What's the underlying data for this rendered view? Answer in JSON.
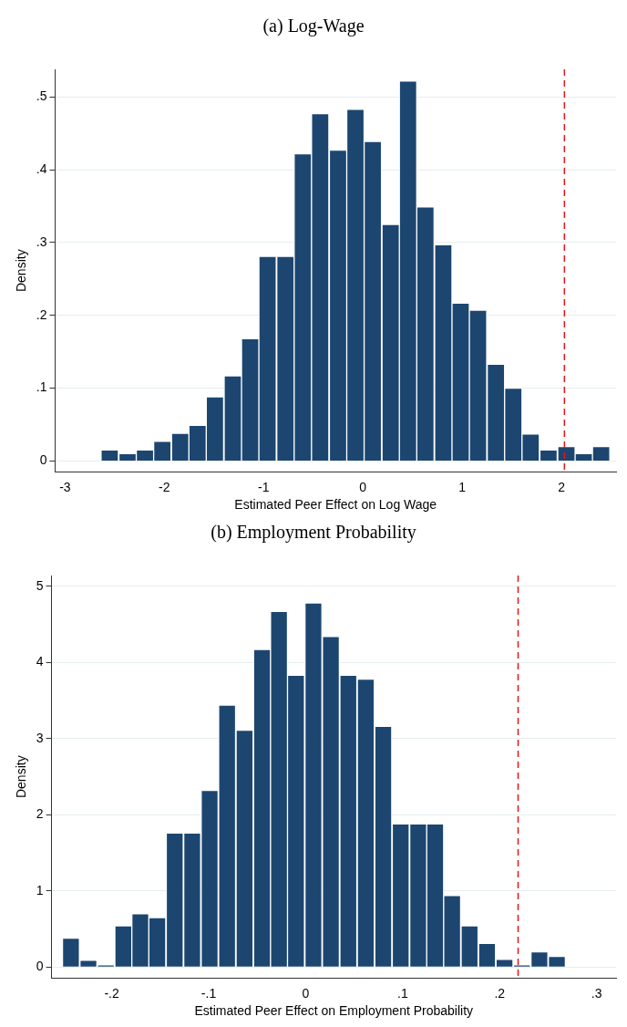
{
  "chart_data": [
    {
      "type": "histogram",
      "title": "(a) Log-Wage",
      "xlabel": "Estimated Peer Effect on Log Wage",
      "ylabel": "Density",
      "bins": [
        -2.64,
        -2.46,
        -2.28,
        -2.11,
        -1.93,
        -1.75,
        -1.58,
        -1.4,
        -1.22,
        -1.05,
        -0.87,
        -0.69,
        -0.52,
        -0.34,
        -0.16,
        0.01,
        0.19,
        0.37,
        0.54,
        0.72,
        0.9,
        1.07,
        1.25,
        1.43,
        1.6,
        1.78,
        1.96,
        2.14,
        2.31,
        2.49
      ],
      "values": [
        0.015,
        0.01,
        0.015,
        0.027,
        0.038,
        0.049,
        0.088,
        0.117,
        0.168,
        0.281,
        0.281,
        0.422,
        0.477,
        0.427,
        0.483,
        0.439,
        0.325,
        0.522,
        0.349,
        0.297,
        0.217,
        0.207,
        0.133,
        0.1,
        0.037,
        0.015,
        0.02,
        0.01,
        0.02
      ],
      "color": "#1c4670",
      "xlim": [
        -3.1,
        2.55
      ],
      "xticks": [
        -3,
        -2,
        -1,
        0,
        1,
        2
      ],
      "ylim": [
        -0.015,
        0.538
      ],
      "yticks": [
        0,
        {
          "value": 0.1,
          "label": ".1"
        },
        {
          "value": 0.2,
          "label": ".2"
        },
        {
          "value": 0.3,
          "label": ".3"
        },
        {
          "value": 0.4,
          "label": ".4"
        },
        {
          "value": 0.5,
          "label": ".5"
        }
      ],
      "grid": "y",
      "legend": false,
      "ref_lines": [
        {
          "axis": "x",
          "value": 2.03,
          "color": "#e8131b",
          "line_style": "dashed"
        }
      ]
    },
    {
      "type": "histogram",
      "title": "(b) Employment Probability",
      "xlabel": "Estimated Peer Effect on Employment Probability",
      "ylabel": "Density",
      "bins": [
        -0.251,
        -0.233,
        -0.215,
        -0.197,
        -0.179,
        -0.162,
        -0.144,
        -0.126,
        -0.108,
        -0.09,
        -0.072,
        -0.054,
        -0.036,
        -0.019,
        -0.001,
        0.017,
        0.035,
        0.053,
        0.071,
        0.089,
        0.107,
        0.125,
        0.142,
        0.16,
        0.178,
        0.196,
        0.214,
        0.232,
        0.25,
        0.268
      ],
      "values": [
        0.38,
        0.09,
        0.03,
        0.54,
        0.7,
        0.65,
        1.76,
        1.76,
        2.32,
        3.44,
        3.11,
        4.17,
        4.67,
        3.83,
        4.78,
        4.34,
        3.83,
        3.78,
        3.16,
        1.88,
        1.88,
        1.88,
        0.94,
        0.54,
        0.31,
        0.1,
        0.03,
        0.2,
        0.14
      ],
      "color": "#1c4670",
      "xlim": [
        -0.262,
        0.32
      ],
      "xticks": [
        {
          "value": -0.2,
          "label": "-.2"
        },
        {
          "value": -0.1,
          "label": "-.1"
        },
        0,
        {
          "value": 0.1,
          "label": ".1"
        },
        {
          "value": 0.2,
          "label": ".2"
        },
        {
          "value": 0.3,
          "label": ".3"
        }
      ],
      "ylim": [
        -0.145,
        5.14
      ],
      "yticks": [
        0,
        1,
        2,
        3,
        4,
        5
      ],
      "grid": "y",
      "legend": false,
      "ref_lines": [
        {
          "axis": "x",
          "value": 0.219,
          "color": "#e8131b",
          "line_style": "dashed"
        }
      ]
    }
  ]
}
